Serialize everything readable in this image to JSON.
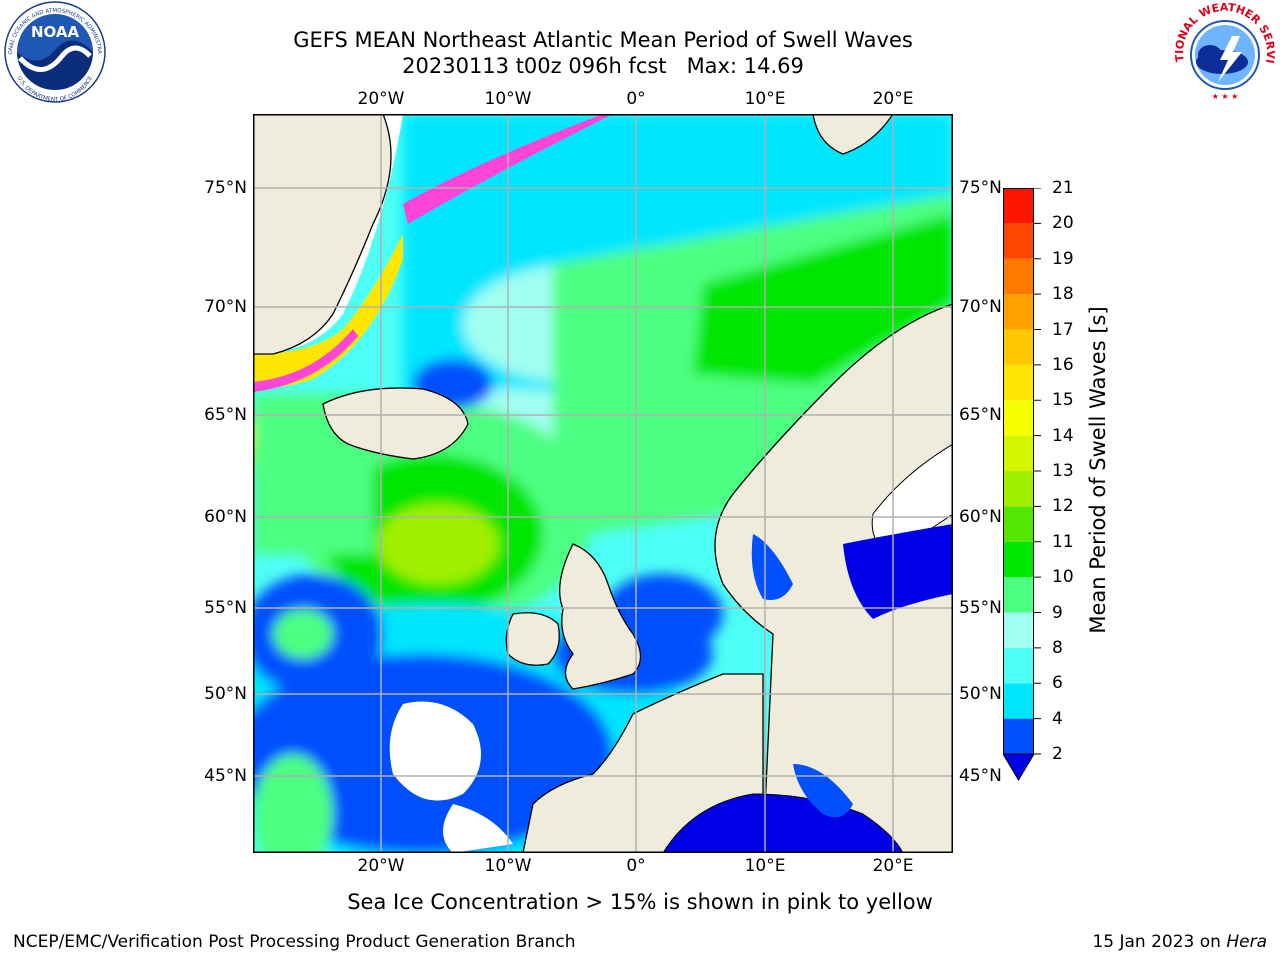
{
  "title": {
    "line1": "GEFS MEAN Northeast Atlantic Mean Period of Swell Waves",
    "line2": "20230113 t00z 096h fcst   Max: 14.69"
  },
  "map": {
    "lon_labels": [
      "20°W",
      "10°W",
      "0°",
      "10°E",
      "20°E"
    ],
    "lon_values": [
      -20,
      -10,
      0,
      10,
      20
    ],
    "lat_labels": [
      "75°N",
      "70°N",
      "65°N",
      "60°N",
      "55°N",
      "50°N",
      "45°N"
    ],
    "lat_values": [
      75,
      70,
      65,
      60,
      55,
      50,
      45
    ],
    "land_color": "#efecdc",
    "no_data_color": "#ffffff",
    "ice_color": "#ff44d8",
    "grid_color": "#b0b0b0"
  },
  "colorbar": {
    "title": "Mean Period of Swell Waves [s]",
    "ticks": [
      "2",
      "4",
      "6",
      "8",
      "9",
      "10",
      "11",
      "12",
      "13",
      "14",
      "15",
      "16",
      "17",
      "18",
      "19",
      "20",
      "21"
    ],
    "colors": [
      "#0050ff",
      "#00e6ff",
      "#4dfff5",
      "#a0fff0",
      "#4dff80",
      "#00e600",
      "#52e600",
      "#a0f000",
      "#d4f500",
      "#f5ff00",
      "#ffe600",
      "#ffc800",
      "#ffa000",
      "#ff7800",
      "#ff4600",
      "#ff1400"
    ],
    "under_color": "#0000e6",
    "extend": "min"
  },
  "footer": {
    "ice_note": "Sea Ice Concentration > 15% is shown in pink to yellow",
    "credit": "NCEP/EMC/Verification Post Processing Product Generation Branch",
    "date": "15 Jan 2023 on",
    "host": "Hera"
  },
  "logos": {
    "noaa_text": "NOAA",
    "noaa_ring_top": "NATIONAL OCEANIC AND ATMOSPHERIC ADMINISTRATION",
    "noaa_ring_bottom": "U.S. DEPARTMENT OF COMMERCE",
    "nws_ring_top": "NATIONAL WEATHER SERVICE"
  }
}
